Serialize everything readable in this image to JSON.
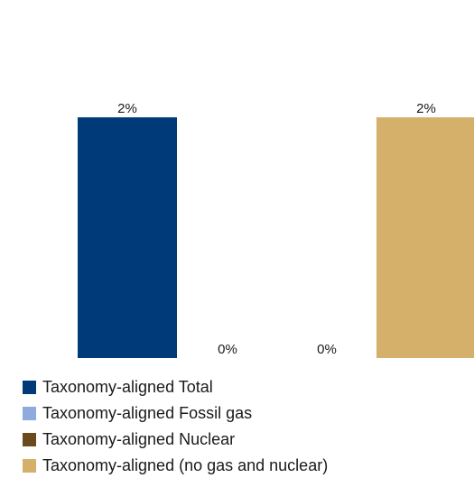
{
  "chart_data": {
    "type": "bar",
    "categories": [
      "Taxonomy-aligned Total",
      "Taxonomy-aligned Fossil gas",
      "Taxonomy-aligned Nuclear",
      "Taxonomy-aligned (no gas and nuclear)"
    ],
    "values": [
      2,
      0,
      0,
      2
    ],
    "value_labels": [
      "2%",
      "0%",
      "0%",
      "2%"
    ],
    "colors": [
      "#003a78",
      "#8faadc",
      "#6b4a1e",
      "#d4b06a"
    ],
    "ylim": [
      0,
      2.75
    ],
    "grid": false,
    "legend_position": "bottom-left"
  },
  "legend": {
    "items": [
      {
        "label": "Taxonomy-aligned Total",
        "color": "#003a78"
      },
      {
        "label": "Taxonomy-aligned Fossil gas",
        "color": "#8faadc"
      },
      {
        "label": "Taxonomy-aligned Nuclear",
        "color": "#6b4a1e"
      },
      {
        "label": "Taxonomy-aligned (no gas and nuclear)",
        "color": "#d4b06a"
      }
    ]
  }
}
